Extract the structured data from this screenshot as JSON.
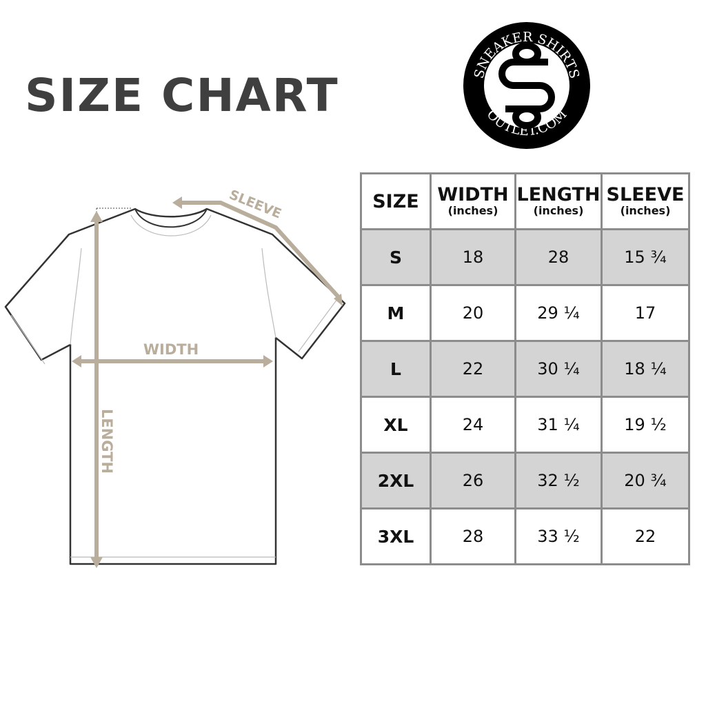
{
  "title": "SIZE CHART",
  "logo": {
    "top_text": "SNEAKER SHIRTS",
    "bottom_text": "OUTLET.COM"
  },
  "diagram": {
    "labels": {
      "sleeve": "SLEEVE",
      "width": "WIDTH",
      "length": "LENGTH"
    },
    "accent_color": "#b9ad9c"
  },
  "table": {
    "headers": [
      {
        "label": "SIZE",
        "unit": ""
      },
      {
        "label": "WIDTH",
        "unit": "(inches)"
      },
      {
        "label": "LENGTH",
        "unit": "(inches)"
      },
      {
        "label": "SLEEVE",
        "unit": "(inches)"
      }
    ],
    "rows": [
      [
        "S",
        "18",
        "28",
        "15 ¾"
      ],
      [
        "M",
        "20",
        "29 ¼",
        "17"
      ],
      [
        "L",
        "22",
        "30 ¼",
        "18 ¼"
      ],
      [
        "XL",
        "24",
        "31 ¼",
        "19 ½"
      ],
      [
        "2XL",
        "26",
        "32 ½",
        "20 ¾"
      ],
      [
        "3XL",
        "28",
        "33 ½",
        "22"
      ]
    ],
    "shade_color": "#d4d4d4"
  }
}
